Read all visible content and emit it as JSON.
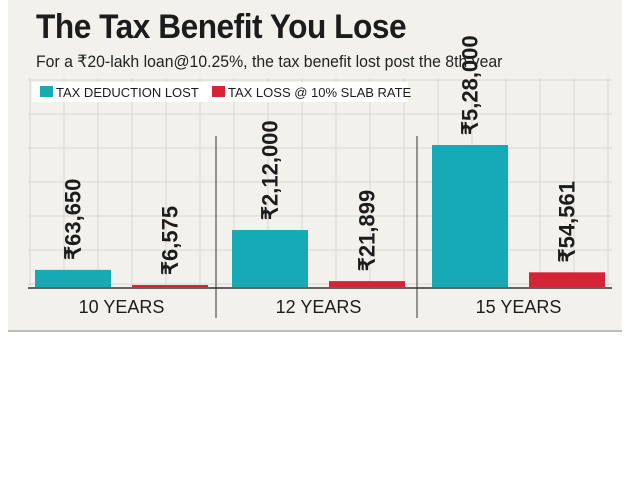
{
  "colors": {
    "deduction": "#16a9b6",
    "loss": "#d62336",
    "grid": "#d9d8d2",
    "text": "#1c1c1c"
  },
  "chart_data": {
    "type": "bar",
    "title": "The Tax Benefit You Lose",
    "subtitle": "For a ₹20-lakh loan@10.25%, the tax benefit lost post the 8th year",
    "categories": [
      "10 YEARS",
      "12 YEARS",
      "15 YEARS"
    ],
    "series": [
      {
        "name": "TAX DEDUCTION LOST",
        "values": [
          63650,
          212000,
          528000
        ],
        "labels": [
          "₹63,650",
          "₹2,12,000",
          "₹5,28,000"
        ]
      },
      {
        "name": "TAX LOSS @ 10% SLAB RATE",
        "values": [
          6575,
          21899,
          54561
        ],
        "labels": [
          "₹6,575",
          "₹21,899",
          "₹54,561"
        ]
      }
    ],
    "xlabel": "",
    "ylabel": "",
    "ylim": [
      0,
      528000
    ],
    "legend": "top-left",
    "grid": true
  }
}
